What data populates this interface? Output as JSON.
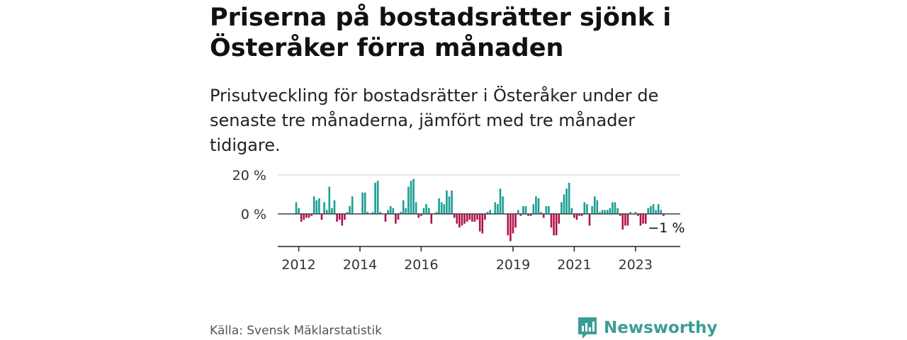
{
  "title": "Priserna på bostadsrätter sjönk i Österåker förra månaden",
  "subtitle": "Prisutveckling för bostadsrätter i Österåker under de senaste tre månaderna, jämfört med tre månader tidigare.",
  "source": "Källa: Svensk Mäklarstatistik",
  "brand": "Newsworthy",
  "colors": {
    "positive": "#1a9e94",
    "negative": "#b0124a",
    "brand": "#3b9e95"
  },
  "chart_data": {
    "type": "bar",
    "title": "Priserna på bostadsrätter sjönk i Österåker förra månaden",
    "ylabel": "",
    "xlabel": "",
    "ylim": [
      -16,
      20
    ],
    "y_ticks": [
      {
        "value": 0,
        "label": "0 %"
      },
      {
        "value": 20,
        "label": "20 %"
      }
    ],
    "x_ticks": [
      {
        "index": 1,
        "label": "2012"
      },
      {
        "index": 25,
        "label": "2014"
      },
      {
        "index": 49,
        "label": "2016"
      },
      {
        "index": 85,
        "label": "2019"
      },
      {
        "index": 109,
        "label": "2021"
      },
      {
        "index": 133,
        "label": "2023"
      }
    ],
    "last_label": "−1 %",
    "values": [
      6,
      3,
      -4,
      -3,
      -2,
      -2,
      -1,
      9,
      7,
      8,
      -3,
      6,
      2,
      14,
      3,
      7,
      -4,
      -3,
      -6,
      -3,
      1,
      4,
      9,
      0,
      0,
      0,
      11,
      11,
      1,
      0,
      1,
      16,
      17,
      1,
      0,
      -4,
      2,
      4,
      3,
      -5,
      -3,
      1,
      7,
      3,
      14,
      17,
      18,
      6,
      -2,
      -1,
      3,
      5,
      3,
      -5,
      0,
      1,
      8,
      6,
      5,
      12,
      9,
      12,
      -2,
      -5,
      -7,
      -6,
      -5,
      -4,
      -3,
      -4,
      -4,
      -3,
      -9,
      -10,
      -3,
      1,
      2,
      0,
      6,
      5,
      13,
      9,
      0,
      -11,
      -14,
      -10,
      -7,
      2,
      -1,
      4,
      4,
      -1,
      -1,
      5,
      9,
      8,
      1,
      -2,
      4,
      4,
      -7,
      -11,
      -11,
      -5,
      6,
      10,
      13,
      16,
      3,
      -2,
      -3,
      -1,
      -1,
      6,
      5,
      -6,
      4,
      9,
      7,
      1,
      2,
      2,
      2,
      3,
      6,
      6,
      3,
      -1,
      -8,
      -6,
      -6,
      1,
      0,
      1,
      -1,
      -6,
      -5,
      -5,
      3,
      4,
      5,
      2,
      5,
      2,
      -1
    ]
  }
}
